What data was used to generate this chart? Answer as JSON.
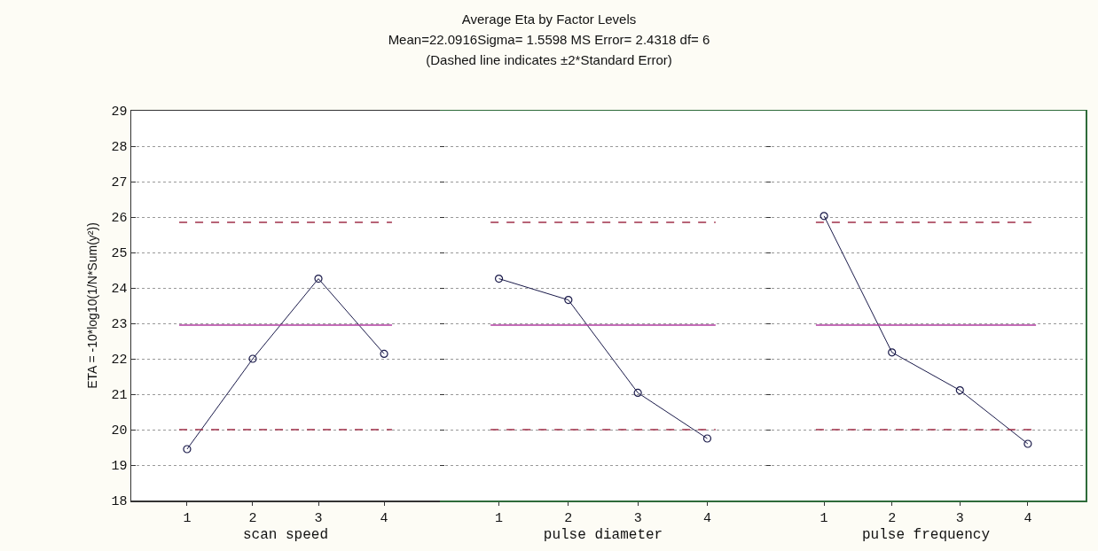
{
  "chart_data": [
    {
      "type": "other",
      "title": "Average Eta by Factor Levels",
      "subtitle": "Mean=22.0916Sigma= 1.5598 MS Error= 2.4318 df= 6",
      "annotations": [
        "(Dashed line indicates ±2*Standard Error)"
      ]
    },
    {
      "type": "line",
      "xlabel": "scan speed",
      "ylabel": "ETA = -10*log10(1/N*Sum(y²))",
      "categories": [
        "1",
        "2",
        "3",
        "4"
      ],
      "series": [
        {
          "color": "#1a1a4a",
          "values": [
            19.45,
            22.0,
            24.26,
            22.14
          ]
        }
      ],
      "ylim": [
        18,
        29
      ],
      "yticks": [
        18,
        19,
        20,
        21,
        22,
        23,
        24,
        25,
        26,
        27,
        28,
        29
      ],
      "grid": "y",
      "marker": "circle",
      "line_style": "solid",
      "ref_lines": [
        {
          "axis": "y",
          "value": 25.85,
          "color": "#a0304a",
          "line_style": "dashed"
        },
        {
          "axis": "y",
          "value": 22.95,
          "color": "#b03ca0",
          "line_style": "solid"
        },
        {
          "axis": "y",
          "value": 20.0,
          "color": "#a0304a",
          "line_style": "dashed"
        }
      ]
    },
    {
      "type": "line",
      "xlabel": "pulse diameter",
      "categories": [
        "1",
        "2",
        "3",
        "4"
      ],
      "series": [
        {
          "color": "#1a1a4a",
          "values": [
            24.26,
            23.66,
            21.04,
            19.75
          ]
        }
      ],
      "ylim": [
        18,
        29
      ],
      "yticks": [
        18,
        19,
        20,
        21,
        22,
        23,
        24,
        25,
        26,
        27,
        28,
        29
      ],
      "tick_labels": "x",
      "grid": "y",
      "marker": "circle",
      "line_style": "solid",
      "ref_lines": [
        {
          "axis": "y",
          "value": 25.85,
          "color": "#a0304a",
          "line_style": "dashed"
        },
        {
          "axis": "y",
          "value": 22.95,
          "color": "#b03ca0",
          "line_style": "solid"
        },
        {
          "axis": "y",
          "value": 20.0,
          "color": "#a0304a",
          "line_style": "dashed"
        }
      ]
    },
    {
      "type": "line",
      "xlabel": "pulse frequency",
      "categories": [
        "1",
        "2",
        "3",
        "4"
      ],
      "series": [
        {
          "color": "#1a1a4a",
          "values": [
            26.03,
            22.18,
            21.11,
            19.6
          ]
        }
      ],
      "ylim": [
        18,
        29
      ],
      "yticks": [
        18,
        19,
        20,
        21,
        22,
        23,
        24,
        25,
        26,
        27,
        28,
        29
      ],
      "tick_labels": "x",
      "grid": "y",
      "marker": "circle",
      "line_style": "solid",
      "ref_lines": [
        {
          "axis": "y",
          "value": 25.85,
          "color": "#a0304a",
          "line_style": "dashed"
        },
        {
          "axis": "y",
          "value": 22.95,
          "color": "#b03ca0",
          "line_style": "solid"
        },
        {
          "axis": "y",
          "value": 20.0,
          "color": "#a0304a",
          "line_style": "dashed"
        }
      ]
    }
  ]
}
